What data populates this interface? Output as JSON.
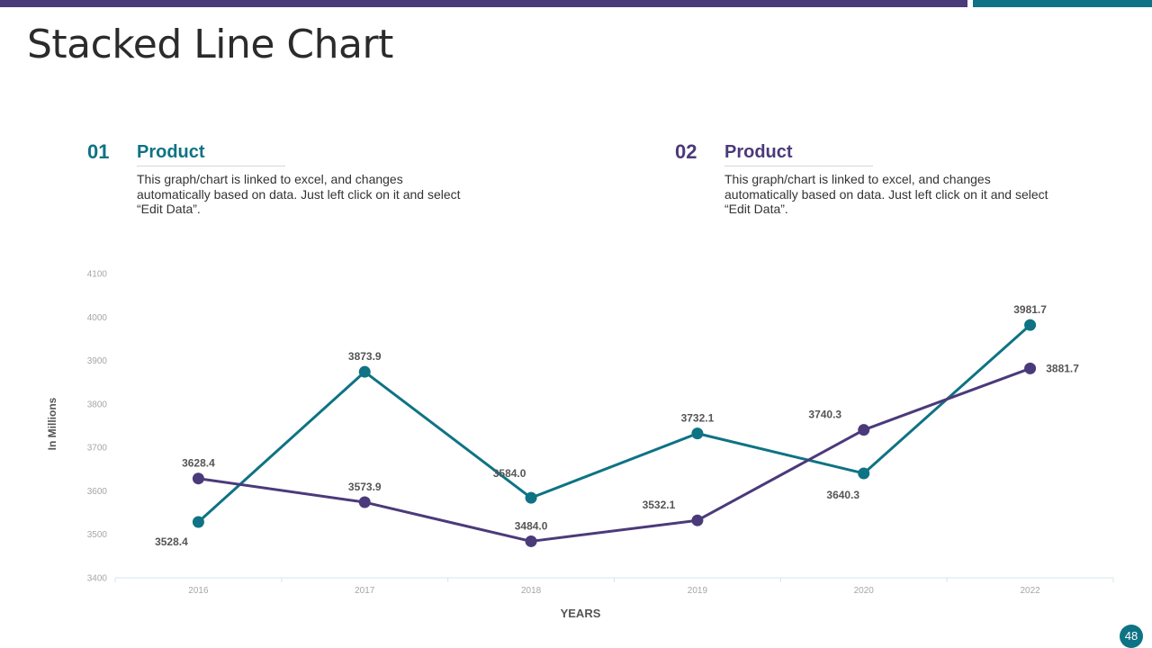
{
  "slide": {
    "title": "Stacked Line Chart",
    "page_number": "48"
  },
  "blocks": [
    {
      "number": "01",
      "heading": "Product",
      "description": "This graph/chart is linked to excel, and changes automatically based on data. Just left click on it and select “Edit Data”."
    },
    {
      "number": "02",
      "heading": "Product",
      "description": "This graph/chart is linked to excel, and changes automatically based on data. Just left click on it and select “Edit Data”."
    }
  ],
  "colors": {
    "teal": "#0e7384",
    "purple": "#4b3a7a",
    "axis": "#d6e4ee",
    "tick_text": "#a6a6a6",
    "label_text": "#555555"
  },
  "chart_data": {
    "type": "line",
    "title": "",
    "xlabel": "YEARS",
    "ylabel": "In Millions",
    "ylim": [
      3400,
      4100
    ],
    "yticks": [
      3400,
      3500,
      3600,
      3700,
      3800,
      3900,
      4000,
      4100
    ],
    "categories": [
      "2016",
      "2017",
      "2018",
      "2019",
      "2020",
      "2022"
    ],
    "series": [
      {
        "name": "Product 01",
        "color": "#0e7384",
        "values": [
          3528.4,
          3873.9,
          3584.0,
          3732.1,
          3640.3,
          3981.7
        ],
        "labels": [
          "3528.4",
          "3873.9",
          "3584.0",
          "3732.1",
          "3640.3",
          "3981.7"
        ]
      },
      {
        "name": "Product 02",
        "color": "#4b3a7a",
        "values": [
          3628.4,
          3573.9,
          3484.0,
          3532.1,
          3740.3,
          3881.7
        ],
        "labels": [
          "3628.4",
          "3573.9",
          "3484.0",
          "3532.1",
          "3740.3",
          "3881.7"
        ]
      }
    ]
  }
}
